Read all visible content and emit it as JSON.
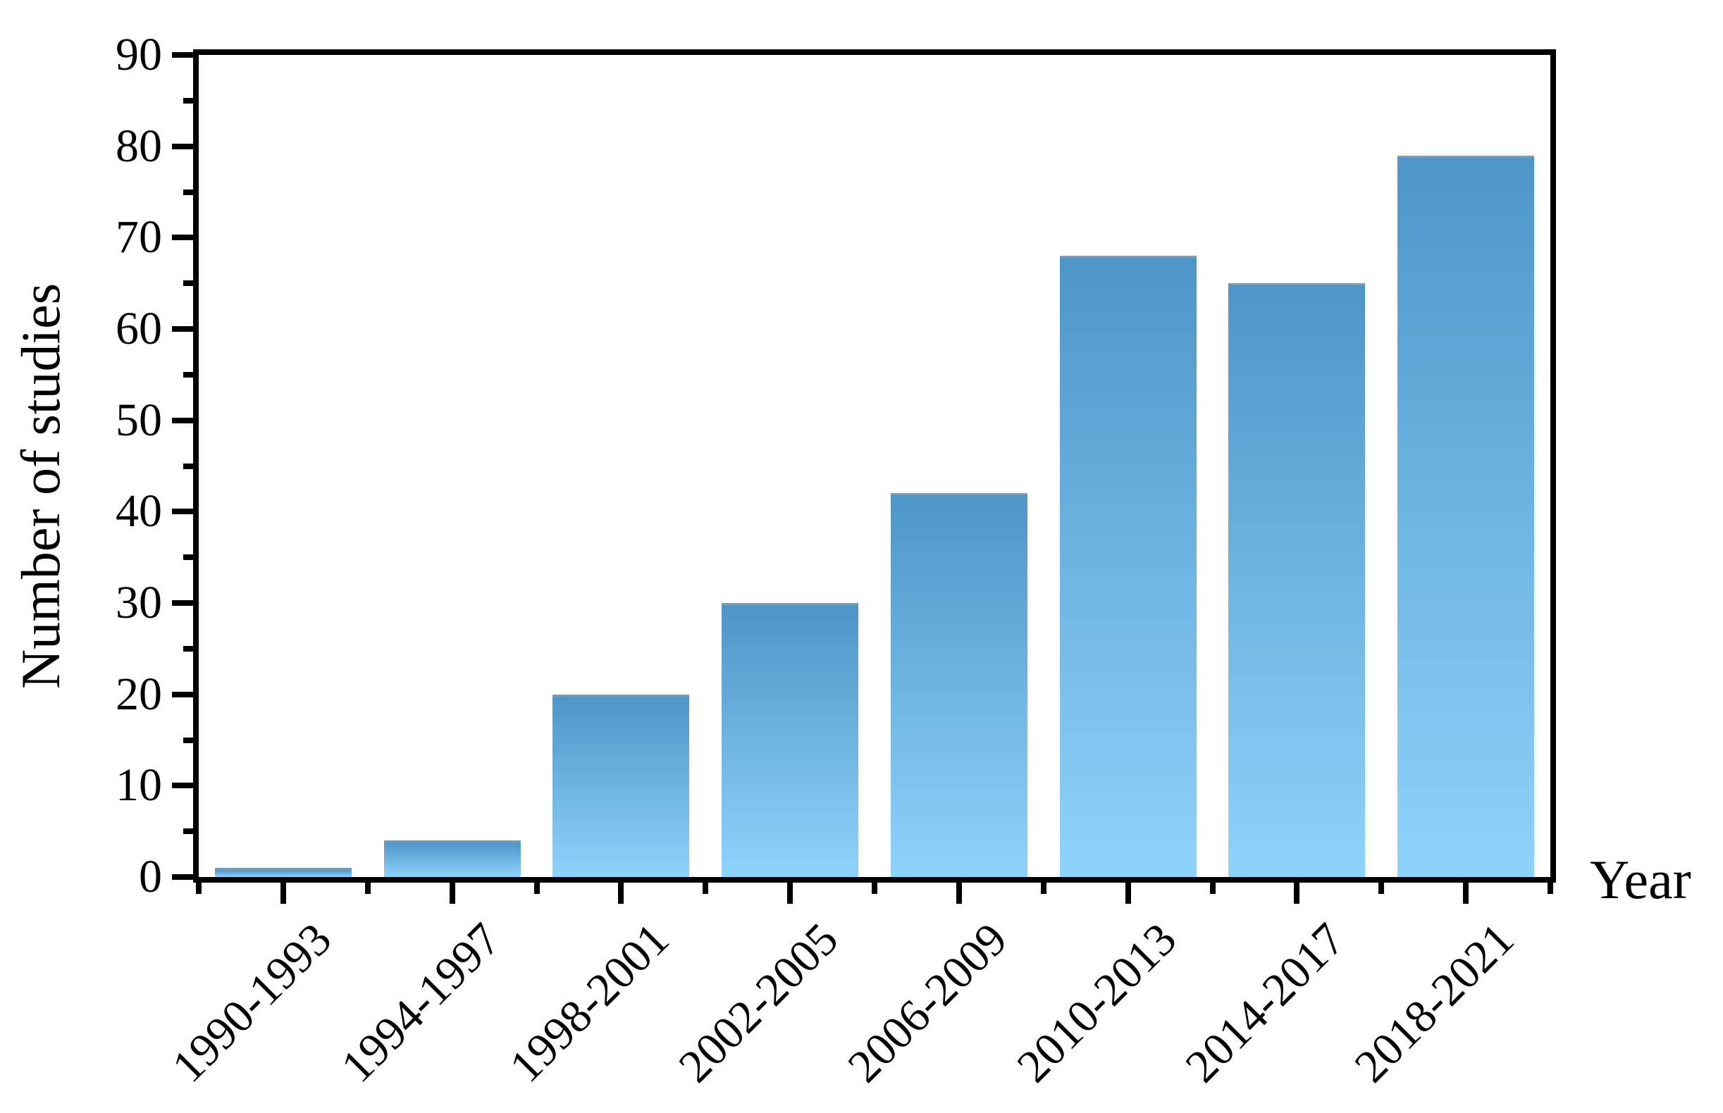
{
  "chart_data": {
    "type": "bar",
    "title": "",
    "categories": [
      "1990-1993",
      "1994-1997",
      "1998-2001",
      "2002-2005",
      "2006-2009",
      "2010-2013",
      "2014-2017",
      "2018-2021"
    ],
    "values": [
      1,
      4,
      20,
      30,
      42,
      68,
      65,
      79
    ],
    "xlabel": "Year",
    "ylabel": "Number of studies",
    "ylim": [
      0,
      90
    ],
    "y_major_ticks": [
      0,
      10,
      20,
      30,
      40,
      50,
      60,
      70,
      80,
      90
    ],
    "y_minor_ticks": [
      5,
      15,
      25,
      35,
      45,
      55,
      65,
      75,
      85
    ],
    "grid": false,
    "legend": "none",
    "colors": {
      "bar_gradient_top": "#4E96C8",
      "bar_gradient_bottom": "#8ED3FA",
      "bar_top_edge": "#64737F",
      "axis": "#000000",
      "text": "#000000",
      "background": "#FFFFFF"
    }
  }
}
